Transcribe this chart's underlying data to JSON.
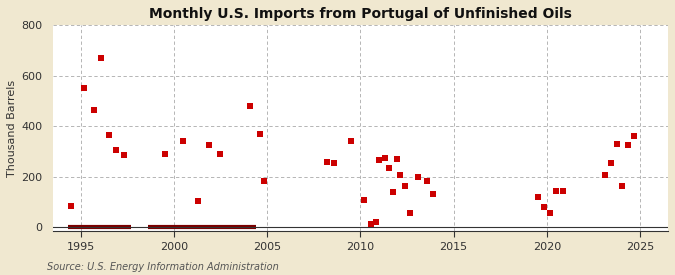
{
  "title": "Monthly U.S. Imports from Portugal of Unfinished Oils",
  "ylabel": "Thousand Barrels",
  "source": "Source: U.S. Energy Information Administration",
  "xlim": [
    1993.5,
    2026.5
  ],
  "ylim": [
    -15,
    800
  ],
  "yticks": [
    0,
    200,
    400,
    600,
    800
  ],
  "xticks": [
    1995,
    2000,
    2005,
    2010,
    2015,
    2020,
    2025
  ],
  "outer_bg": "#f0e8d0",
  "plot_bg": "#ffffff",
  "scatter_color": "#cc0000",
  "line_color": "#7a0000",
  "scatter_data": [
    [
      1994.5,
      85
    ],
    [
      1995.2,
      550
    ],
    [
      1995.7,
      465
    ],
    [
      1996.1,
      670
    ],
    [
      1996.5,
      365
    ],
    [
      1996.9,
      305
    ],
    [
      1997.3,
      285
    ],
    [
      1999.5,
      290
    ],
    [
      2000.5,
      340
    ],
    [
      2001.3,
      105
    ],
    [
      2001.9,
      325
    ],
    [
      2002.5,
      290
    ],
    [
      2004.1,
      480
    ],
    [
      2004.6,
      370
    ],
    [
      2004.85,
      185
    ],
    [
      2008.2,
      260
    ],
    [
      2008.6,
      255
    ],
    [
      2009.5,
      340
    ],
    [
      2010.2,
      110
    ],
    [
      2010.55,
      15
    ],
    [
      2010.85,
      20
    ],
    [
      2011.0,
      265
    ],
    [
      2011.3,
      275
    ],
    [
      2011.55,
      235
    ],
    [
      2011.75,
      140
    ],
    [
      2011.95,
      270
    ],
    [
      2012.15,
      205
    ],
    [
      2012.4,
      165
    ],
    [
      2012.65,
      55
    ],
    [
      2013.1,
      200
    ],
    [
      2013.55,
      185
    ],
    [
      2013.9,
      130
    ],
    [
      2019.5,
      120
    ],
    [
      2019.85,
      80
    ],
    [
      2020.15,
      55
    ],
    [
      2020.5,
      145
    ],
    [
      2020.85,
      145
    ],
    [
      2023.1,
      205
    ],
    [
      2023.45,
      255
    ],
    [
      2023.75,
      330
    ],
    [
      2024.05,
      165
    ],
    [
      2024.35,
      325
    ],
    [
      2024.7,
      360
    ]
  ],
  "line_segments": [
    [
      [
        1994.3,
        1997.7
      ],
      [
        0,
        0
      ]
    ],
    [
      [
        1998.6,
        2004.4
      ],
      [
        0,
        0
      ]
    ]
  ]
}
